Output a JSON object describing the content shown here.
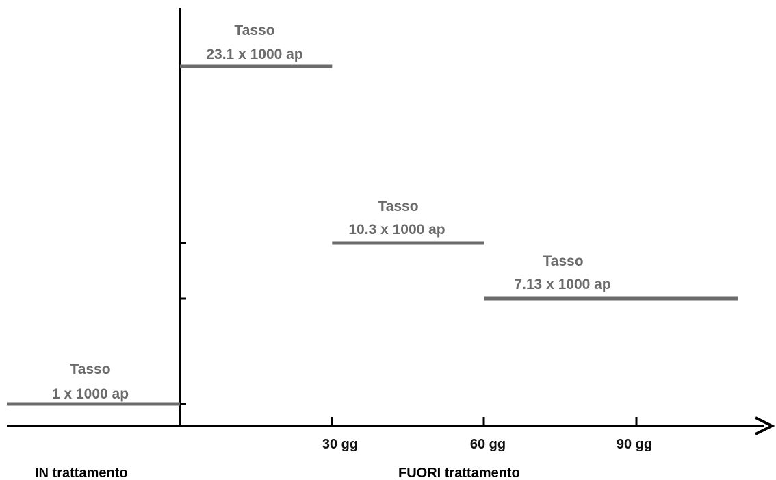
{
  "chart_data": {
    "type": "line",
    "x_ticks": [
      "30 gg",
      "60 gg",
      "90 gg"
    ],
    "x_region_labels": {
      "in": "IN trattamento",
      "out": "FUORI trattamento"
    },
    "series": [
      {
        "label_title": "Tasso",
        "label_value": "1 x 1000 ap",
        "value": 1,
        "x_start": -35,
        "x_end": 0
      },
      {
        "label_title": "Tasso",
        "label_value": "23.1 x 1000 ap",
        "value": 23.1,
        "x_start": 0,
        "x_end": 30
      },
      {
        "label_title": "Tasso",
        "label_value": "10.3 x 1000 ap",
        "value": 10.3,
        "x_start": 30,
        "x_end": 60
      },
      {
        "label_title": "Tasso",
        "label_value": "7.13 x 1000 ap",
        "value": 7.13,
        "x_start": 60,
        "x_end": 110
      }
    ],
    "colors": {
      "segment": "#6b6b6b",
      "axis": "#000000"
    }
  }
}
